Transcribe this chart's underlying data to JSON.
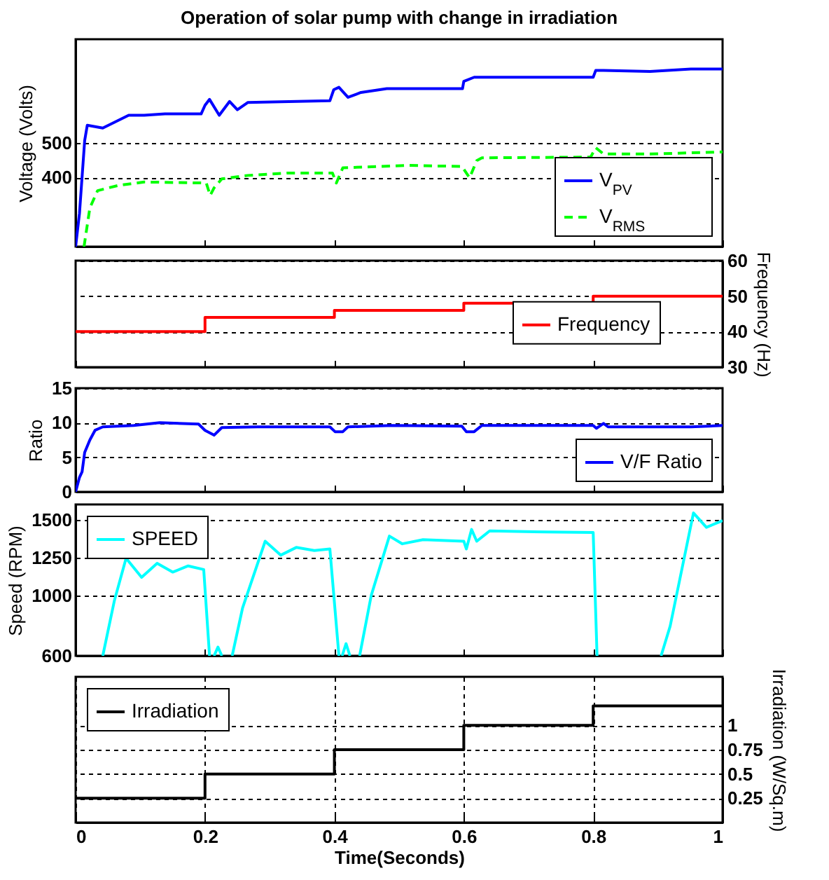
{
  "chart_data": [
    {
      "type": "line",
      "title": "Operation of solar pump with change in irradiation",
      "ylabel": "Voltage (Volts)",
      "xlim": [
        0,
        1
      ],
      "xticks": [
        0,
        0.2,
        0.4,
        0.6,
        0.8,
        1
      ],
      "ylim": [
        200,
        800
      ],
      "yticks": [
        400,
        500
      ],
      "grid": "y",
      "legend": "bottom right",
      "tick_labels": "y",
      "series": [
        {
          "name": "V$_{PV}$",
          "color": "#0000ff",
          "line_style": "solid",
          "x": [
            0,
            0.006,
            0.014,
            0.018,
            0.042,
            0.082,
            0.106,
            0.138,
            0.194,
            0.2,
            0.207,
            0.222,
            0.238,
            0.25,
            0.266,
            0.393,
            0.399,
            0.407,
            0.421,
            0.441,
            0.481,
            0.598,
            0.6,
            0.616,
            0.8,
            0.804,
            0.816,
            0.888,
            0.951,
            1
          ],
          "values": [
            200,
            297,
            507,
            551,
            543,
            580,
            580,
            584,
            584,
            609,
            626,
            580,
            620,
            596,
            617,
            622,
            654,
            661,
            632,
            646,
            657,
            657,
            678,
            690,
            690,
            710,
            710,
            707,
            714,
            714
          ]
        },
        {
          "name": "V$_{RMS}$",
          "color": "#00ff00",
          "line_style": "dashed",
          "x": [
            0.013,
            0.022,
            0.034,
            0.066,
            0.106,
            0.202,
            0.208,
            0.214,
            0.226,
            0.266,
            0.329,
            0.397,
            0.403,
            0.413,
            0.473,
            0.513,
            0.597,
            0.609,
            0.62,
            0.628,
            0.796,
            0.804,
            0.816,
            0.888,
            1
          ],
          "values": [
            200,
            312,
            362,
            377,
            387,
            384,
            348,
            370,
            396,
            406,
            413,
            413,
            384,
            428,
            432,
            435,
            432,
            399,
            449,
            457,
            459,
            486,
            468,
            468,
            474
          ]
        }
      ]
    },
    {
      "type": "step",
      "xlim": [
        0,
        1
      ],
      "xticks": [
        0,
        0.2,
        0.4,
        0.6,
        0.8,
        1
      ],
      "y2label": "Frequency (Hz)",
      "y2lim": [
        30,
        60
      ],
      "y2ticks": [
        30,
        40,
        50,
        60
      ],
      "grid": "y",
      "legend": "right",
      "tick_labels": "y",
      "series": [
        {
          "name": "Frequency",
          "color": "#ff0000",
          "axis": "y2",
          "x": [
            0,
            0.2,
            0.4,
            0.6,
            0.8,
            1
          ],
          "values": [
            40,
            44,
            46,
            48,
            50,
            50
          ]
        }
      ]
    },
    {
      "type": "line",
      "ylabel": "Ratio",
      "xlim": [
        0,
        1
      ],
      "xticks": [
        0,
        0.2,
        0.4,
        0.6,
        0.8,
        1
      ],
      "ylim": [
        0,
        15
      ],
      "yticks": [
        0,
        5,
        10,
        15
      ],
      "grid": "y",
      "legend": "bottom right",
      "tick_labels": "y",
      "series": [
        {
          "name": "V/F Ratio",
          "color": "#0000ff",
          "x": [
            0,
            0.006,
            0.01,
            0.014,
            0.022,
            0.03,
            0.042,
            0.09,
            0.13,
            0.19,
            0.2,
            0.214,
            0.226,
            0.281,
            0.393,
            0.401,
            0.413,
            0.421,
            0.489,
            0.597,
            0.604,
            0.616,
            0.628,
            0.8,
            0.805,
            0.816,
            0.823,
            0.951,
            1
          ],
          "values": [
            0,
            2.1,
            2.9,
            5.7,
            7.5,
            8.9,
            9.4,
            9.6,
            10,
            9.8,
            8.9,
            8.2,
            9.3,
            9.4,
            9.4,
            8.7,
            8.7,
            9.4,
            9.6,
            9.5,
            8.7,
            8.7,
            9.6,
            9.6,
            9.2,
            9.9,
            9.4,
            9.4,
            9.6
          ]
        }
      ]
    },
    {
      "type": "line",
      "ylabel": "Speed (RPM)",
      "xlim": [
        0,
        1
      ],
      "xticks": [
        0,
        0.2,
        0.4,
        0.6,
        0.8,
        1
      ],
      "ylim": [
        600,
        1600
      ],
      "yticks": [
        600,
        1000,
        1250,
        1500
      ],
      "grid": "y",
      "legend": "top left",
      "tick_labels": "y",
      "series": [
        {
          "name": "SPEED",
          "color": "#00ffff",
          "x": [
            0.042,
            0.06,
            0.078,
            0.102,
            0.126,
            0.15,
            0.174,
            0.198,
            0.207,
            0.21,
            0.214,
            0.22,
            0.226,
            0.234,
            0.242,
            0.258,
            0.293,
            0.317,
            0.341,
            0.369,
            0.393,
            0.407,
            0.41,
            0.412,
            0.418,
            0.424,
            0.43,
            0.439,
            0.457,
            0.485,
            0.505,
            0.537,
            0.6,
            0.604,
            0.612,
            0.62,
            0.64,
            0.728,
            0.8,
            0.806,
            0.85,
            0.905,
            0.919,
            0.955,
            0.975,
            1
          ],
          "values": [
            600,
            966,
            1245,
            1119,
            1211,
            1153,
            1194,
            1170,
            600,
            null,
            600,
            657,
            600,
            null,
            600,
            915,
            1357,
            1265,
            1316,
            1296,
            1306,
            600,
            null,
            600,
            680,
            600,
            null,
            600,
            1000,
            1391,
            1340,
            1367,
            1357,
            1306,
            1435,
            1357,
            1425,
            1418,
            1415,
            600,
            null,
            600,
            796,
            1544,
            1449,
            1493
          ]
        }
      ]
    },
    {
      "type": "step",
      "xlabel": "Time(Seconds)",
      "xlim": [
        0,
        1
      ],
      "xticks": [
        0,
        0.2,
        0.4,
        0.6,
        0.8,
        1
      ],
      "y2label": "Irradiation (W/Sq.m)",
      "y2lim": [
        0,
        1.5
      ],
      "y2ticks": [
        0.25,
        0.5,
        0.75,
        1
      ],
      "grid": true,
      "legend": "top left",
      "series": [
        {
          "name": "Irradiation",
          "color": "#000000",
          "axis": "y2",
          "x": [
            0,
            0.2,
            0.4,
            0.6,
            0.8,
            1
          ],
          "values": [
            0.25,
            0.5,
            0.75,
            1,
            1.2,
            1.2
          ]
        }
      ]
    }
  ]
}
